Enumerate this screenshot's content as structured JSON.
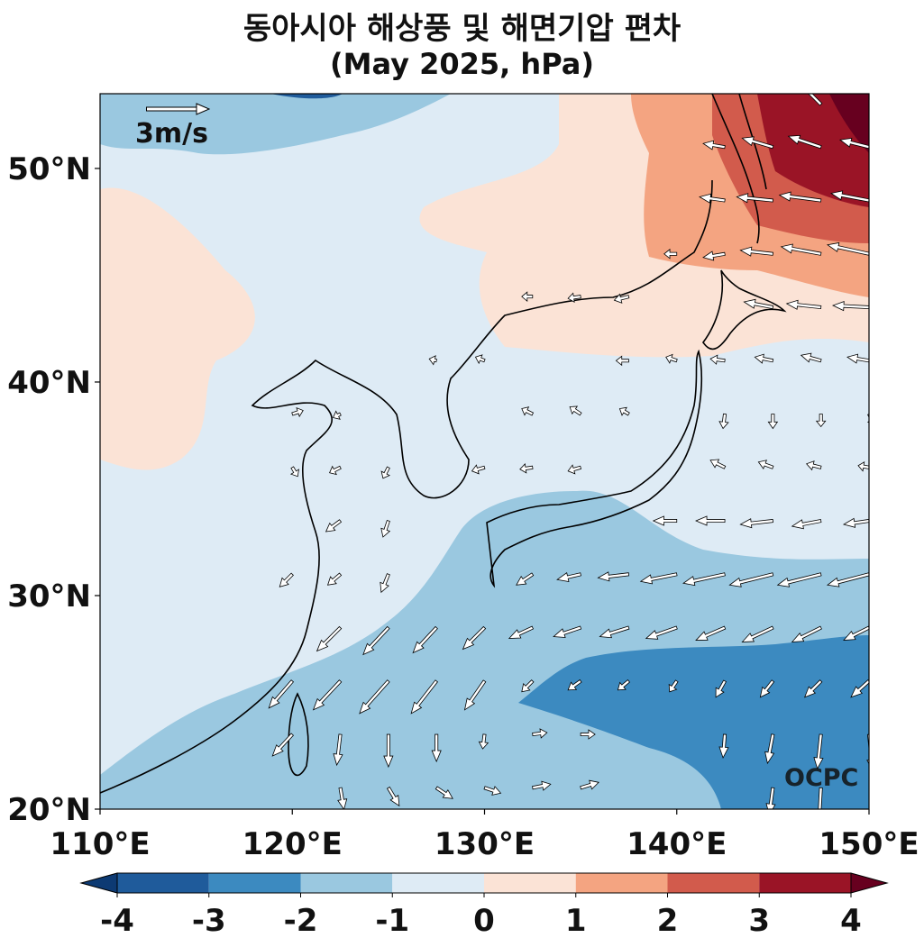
{
  "chart_data": {
    "type": "heatmap",
    "title": "동아시아 해상풍 및 해면기압 편차",
    "subtitle": "(May 2025, hPa)",
    "x_ticks": [
      "110°E",
      "120°E",
      "130°E",
      "140°E",
      "150°E"
    ],
    "y_ticks": [
      "20°N",
      "30°N",
      "40°N",
      "50°N"
    ],
    "xlim": [
      110,
      150
    ],
    "ylim": [
      20,
      53.5
    ],
    "reference_vector": {
      "label": "3m/s",
      "magnitude": 3
    },
    "watermark": "OCPC",
    "colorbar": {
      "levels": [
        -4,
        -3,
        -2,
        -1,
        0,
        1,
        2,
        3,
        4
      ],
      "labels": [
        "-4",
        "-3",
        "-2",
        "-1",
        "0",
        "1",
        "2",
        "3",
        "4"
      ],
      "colors": [
        "#1f5b9b",
        "#3c8ac0",
        "#9ac8e0",
        "#deebf5",
        "#fbe3d6",
        "#f4a481",
        "#d25b4c",
        "#9a1426"
      ],
      "extend": "both",
      "under_color": "#0d3a73",
      "over_color": "#67001f"
    },
    "regions": [
      {
        "level_range": [
          -1,
          0
        ],
        "description_color": "#deebf5"
      },
      {
        "level_range": [
          -2,
          -1
        ],
        "description_color": "#9ac8e0"
      },
      {
        "level_range": [
          -3,
          -2
        ],
        "description_color": "#3c8ac0"
      },
      {
        "level_range": [
          0,
          1
        ],
        "description_color": "#fbe3d6"
      },
      {
        "level_range": [
          1,
          2
        ],
        "description_color": "#f4a481"
      },
      {
        "level_range": [
          2,
          3
        ],
        "description_color": "#d25b4c"
      },
      {
        "level_range": [
          3,
          4
        ],
        "description_color": "#9a1426"
      }
    ],
    "wind_vectors": [
      {
        "lon": 120,
        "lat": 38.5,
        "u": 0.6,
        "v": 0.2
      },
      {
        "lon": 122.5,
        "lat": 38.5,
        "u": -0.4,
        "v": -0.2
      },
      {
        "lon": 122.5,
        "lat": 36,
        "u": -0.6,
        "v": -0.3
      },
      {
        "lon": 122.5,
        "lat": 33.5,
        "u": -0.8,
        "v": -0.6
      },
      {
        "lon": 120,
        "lat": 36,
        "u": 0.3,
        "v": -0.5
      },
      {
        "lon": 125,
        "lat": 36,
        "u": -0.3,
        "v": -0.6
      },
      {
        "lon": 125,
        "lat": 33.5,
        "u": -0.3,
        "v": -0.9
      },
      {
        "lon": 125,
        "lat": 31,
        "u": -0.4,
        "v": -1.0
      },
      {
        "lon": 122.5,
        "lat": 31,
        "u": -0.7,
        "v": -0.6
      },
      {
        "lon": 120,
        "lat": 31,
        "u": -0.7,
        "v": -0.7
      },
      {
        "lon": 122.5,
        "lat": 28.5,
        "u": -1.3,
        "v": -1.3
      },
      {
        "lon": 125,
        "lat": 28.5,
        "u": -1.4,
        "v": -1.5
      },
      {
        "lon": 127.5,
        "lat": 28.5,
        "u": -1.3,
        "v": -1.4
      },
      {
        "lon": 130,
        "lat": 28.5,
        "u": -1.2,
        "v": -1.2
      },
      {
        "lon": 122.5,
        "lat": 26,
        "u": -1.5,
        "v": -1.6
      },
      {
        "lon": 125,
        "lat": 26,
        "u": -1.6,
        "v": -1.8
      },
      {
        "lon": 127.5,
        "lat": 26,
        "u": -1.4,
        "v": -1.8
      },
      {
        "lon": 130,
        "lat": 26,
        "u": -1.1,
        "v": -1.6
      },
      {
        "lon": 120,
        "lat": 26,
        "u": -1.3,
        "v": -1.5
      },
      {
        "lon": 120,
        "lat": 23.5,
        "u": -1.1,
        "v": -1.2
      },
      {
        "lon": 122.5,
        "lat": 23.5,
        "u": -0.2,
        "v": -1.7
      },
      {
        "lon": 125,
        "lat": 23.5,
        "u": 0.0,
        "v": -1.8
      },
      {
        "lon": 127.5,
        "lat": 23.5,
        "u": 0.0,
        "v": -1.5
      },
      {
        "lon": 130,
        "lat": 23.5,
        "u": -0.1,
        "v": -0.8
      },
      {
        "lon": 122.5,
        "lat": 21,
        "u": 0.2,
        "v": -1.2
      },
      {
        "lon": 125,
        "lat": 21,
        "u": 0.6,
        "v": -1.0
      },
      {
        "lon": 127.5,
        "lat": 21,
        "u": 0.9,
        "v": -0.6
      },
      {
        "lon": 130,
        "lat": 21,
        "u": 0.9,
        "v": -0.3
      },
      {
        "lon": 132.5,
        "lat": 21,
        "u": 1.0,
        "v": 0.2
      },
      {
        "lon": 135,
        "lat": 21,
        "u": 1.0,
        "v": 0.3
      },
      {
        "lon": 132.5,
        "lat": 23.5,
        "u": 0.8,
        "v": 0.1
      },
      {
        "lon": 135,
        "lat": 23.5,
        "u": 0.8,
        "v": 0.0
      },
      {
        "lon": 132.5,
        "lat": 26,
        "u": -0.6,
        "v": -0.6
      },
      {
        "lon": 135,
        "lat": 26,
        "u": -0.7,
        "v": -0.5
      },
      {
        "lon": 137.5,
        "lat": 26,
        "u": -0.6,
        "v": -0.5
      },
      {
        "lon": 140,
        "lat": 26,
        "u": -0.4,
        "v": -0.6
      },
      {
        "lon": 142.5,
        "lat": 26,
        "u": -0.5,
        "v": -0.9
      },
      {
        "lon": 145,
        "lat": 26,
        "u": -0.7,
        "v": -0.9
      },
      {
        "lon": 147.5,
        "lat": 26,
        "u": -0.9,
        "v": -0.9
      },
      {
        "lon": 150,
        "lat": 26,
        "u": -1.0,
        "v": -0.9
      },
      {
        "lon": 142.5,
        "lat": 23.5,
        "u": -0.1,
        "v": -1.3
      },
      {
        "lon": 145,
        "lat": 23.5,
        "u": -0.3,
        "v": -1.6
      },
      {
        "lon": 147.5,
        "lat": 23.5,
        "u": -0.2,
        "v": -1.9
      },
      {
        "lon": 150,
        "lat": 23.5,
        "u": 0.2,
        "v": -2.0
      },
      {
        "lon": 145,
        "lat": 21,
        "u": -0.2,
        "v": -1.5
      },
      {
        "lon": 147.5,
        "lat": 21,
        "u": -0.1,
        "v": -1.8
      },
      {
        "lon": 132.5,
        "lat": 28.5,
        "u": -1.3,
        "v": -0.6
      },
      {
        "lon": 135,
        "lat": 28.5,
        "u": -1.5,
        "v": -0.5
      },
      {
        "lon": 137.5,
        "lat": 28.5,
        "u": -1.6,
        "v": -0.5
      },
      {
        "lon": 140,
        "lat": 28.5,
        "u": -1.7,
        "v": -0.6
      },
      {
        "lon": 142.5,
        "lat": 28.5,
        "u": -1.6,
        "v": -0.7
      },
      {
        "lon": 145,
        "lat": 28.5,
        "u": -1.7,
        "v": -0.8
      },
      {
        "lon": 147.5,
        "lat": 28.5,
        "u": -1.6,
        "v": -0.8
      },
      {
        "lon": 150,
        "lat": 28.5,
        "u": -1.4,
        "v": -0.7
      },
      {
        "lon": 132.5,
        "lat": 31,
        "u": -0.9,
        "v": -0.6
      },
      {
        "lon": 135,
        "lat": 31,
        "u": -1.3,
        "v": -0.3
      },
      {
        "lon": 137.5,
        "lat": 31,
        "u": -1.7,
        "v": -0.2
      },
      {
        "lon": 140,
        "lat": 31,
        "u": -2.0,
        "v": -0.4
      },
      {
        "lon": 142.5,
        "lat": 31,
        "u": -2.3,
        "v": -0.5
      },
      {
        "lon": 145,
        "lat": 31,
        "u": -2.4,
        "v": -0.6
      },
      {
        "lon": 147.5,
        "lat": 31,
        "u": -2.4,
        "v": -0.6
      },
      {
        "lon": 150,
        "lat": 31,
        "u": -2.3,
        "v": -0.6
      },
      {
        "lon": 140,
        "lat": 33.5,
        "u": -1.3,
        "v": 0.0
      },
      {
        "lon": 142.5,
        "lat": 33.5,
        "u": -1.6,
        "v": 0.0
      },
      {
        "lon": 145,
        "lat": 33.5,
        "u": -1.8,
        "v": -0.2
      },
      {
        "lon": 147.5,
        "lat": 33.5,
        "u": -1.6,
        "v": -0.3
      },
      {
        "lon": 150,
        "lat": 33.5,
        "u": -1.4,
        "v": -0.2
      },
      {
        "lon": 142.5,
        "lat": 36,
        "u": -0.8,
        "v": 0.4
      },
      {
        "lon": 145,
        "lat": 36,
        "u": -0.8,
        "v": 0.3
      },
      {
        "lon": 147.5,
        "lat": 36,
        "u": -0.8,
        "v": 0.2
      },
      {
        "lon": 150,
        "lat": 36,
        "u": -0.6,
        "v": 0.1
      },
      {
        "lon": 142.5,
        "lat": 38.5,
        "u": -0.1,
        "v": -0.8
      },
      {
        "lon": 145,
        "lat": 38.5,
        "u": 0.0,
        "v": -0.8
      },
      {
        "lon": 147.5,
        "lat": 38.5,
        "u": 0.0,
        "v": -0.7
      },
      {
        "lon": 150,
        "lat": 38.5,
        "u": 0.3,
        "v": -0.6
      },
      {
        "lon": 127.5,
        "lat": 41,
        "u": -0.4,
        "v": 0.1
      },
      {
        "lon": 130,
        "lat": 41,
        "u": -0.5,
        "v": 0.2
      },
      {
        "lon": 132.5,
        "lat": 38.5,
        "u": -0.6,
        "v": 0.3
      },
      {
        "lon": 135,
        "lat": 38.5,
        "u": -0.6,
        "v": 0.4
      },
      {
        "lon": 137.5,
        "lat": 38.5,
        "u": -0.5,
        "v": 0.3
      },
      {
        "lon": 130,
        "lat": 36,
        "u": -0.7,
        "v": -0.2
      },
      {
        "lon": 132.5,
        "lat": 36,
        "u": -0.7,
        "v": -0.1
      },
      {
        "lon": 135,
        "lat": 36,
        "u": -0.7,
        "v": -0.2
      },
      {
        "lon": 132.5,
        "lat": 44,
        "u": -0.6,
        "v": 0.0
      },
      {
        "lon": 135,
        "lat": 44,
        "u": -0.7,
        "v": -0.1
      },
      {
        "lon": 137.5,
        "lat": 44,
        "u": -0.8,
        "v": -0.2
      },
      {
        "lon": 137.5,
        "lat": 41,
        "u": -0.7,
        "v": 0.0
      },
      {
        "lon": 140,
        "lat": 41,
        "u": -0.6,
        "v": 0.2
      },
      {
        "lon": 142.5,
        "lat": 41,
        "u": -0.8,
        "v": 0.1
      },
      {
        "lon": 145,
        "lat": 41,
        "u": -1.0,
        "v": 0.2
      },
      {
        "lon": 147.5,
        "lat": 41,
        "u": -1.1,
        "v": 0.3
      },
      {
        "lon": 150,
        "lat": 41,
        "u": -1.2,
        "v": 0.2
      },
      {
        "lon": 145,
        "lat": 43.5,
        "u": -1.6,
        "v": 0.3
      },
      {
        "lon": 147.5,
        "lat": 43.5,
        "u": -1.9,
        "v": 0.2
      },
      {
        "lon": 150,
        "lat": 43.5,
        "u": -2.0,
        "v": 0.1
      },
      {
        "lon": 140,
        "lat": 46,
        "u": -0.7,
        "v": 0.0
      },
      {
        "lon": 142.5,
        "lat": 46,
        "u": -1.2,
        "v": -0.2
      },
      {
        "lon": 145,
        "lat": 46,
        "u": -1.8,
        "v": 0.2
      },
      {
        "lon": 147.5,
        "lat": 46,
        "u": -2.2,
        "v": 0.4
      },
      {
        "lon": 150,
        "lat": 46,
        "u": -2.3,
        "v": 0.5
      },
      {
        "lon": 142.5,
        "lat": 48.5,
        "u": -1.4,
        "v": 0.2
      },
      {
        "lon": 145,
        "lat": 48.5,
        "u": -2.0,
        "v": 0.2
      },
      {
        "lon": 147.5,
        "lat": 48.5,
        "u": -2.3,
        "v": 0.3
      },
      {
        "lon": 150,
        "lat": 48.5,
        "u": -2.1,
        "v": 0.4
      },
      {
        "lon": 142.5,
        "lat": 51,
        "u": -1.2,
        "v": 0.2
      },
      {
        "lon": 145,
        "lat": 51,
        "u": -1.7,
        "v": 0.5
      },
      {
        "lon": 147.5,
        "lat": 51,
        "u": -1.8,
        "v": 0.6
      },
      {
        "lon": 150,
        "lat": 51,
        "u": -1.6,
        "v": 0.4
      },
      {
        "lon": 147.5,
        "lat": 53,
        "u": -1.2,
        "v": 1.2
      }
    ]
  }
}
